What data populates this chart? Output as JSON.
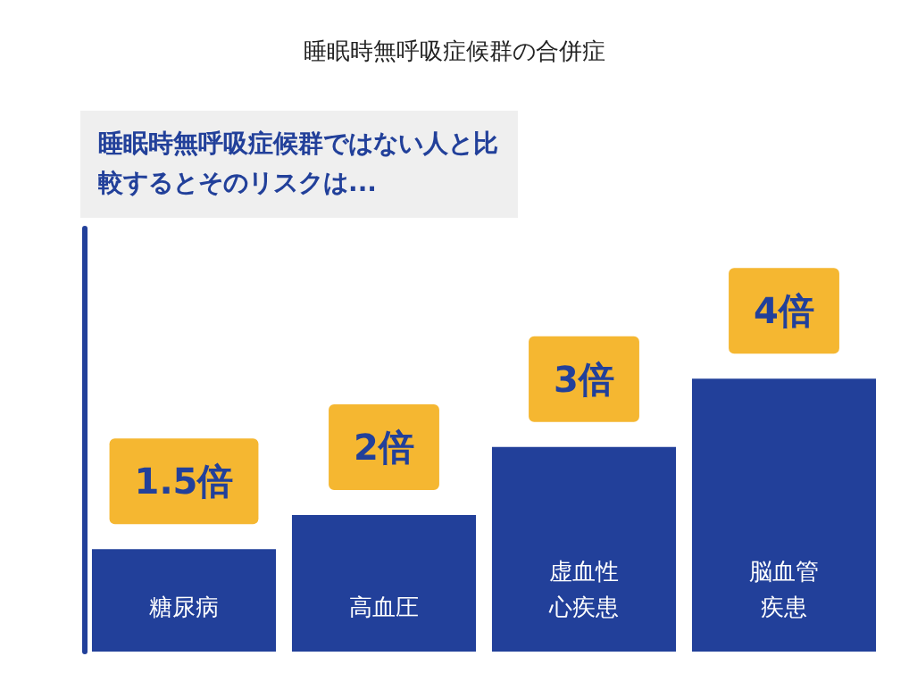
{
  "chart_data": {
    "type": "bar",
    "title": "睡眠時無呼吸症候群の合併症",
    "annotations": [
      "睡眠時無呼吸症候群ではない人と比較するとそのリスクは..."
    ],
    "categories": [
      "糖尿病",
      "高血圧",
      "虚血性心疾患",
      "脳血管疾患"
    ],
    "values": [
      1.5,
      2,
      3,
      4
    ],
    "value_labels": [
      "1.5倍",
      "2倍",
      "3倍",
      "4倍"
    ],
    "color": "#22409a"
  }
}
